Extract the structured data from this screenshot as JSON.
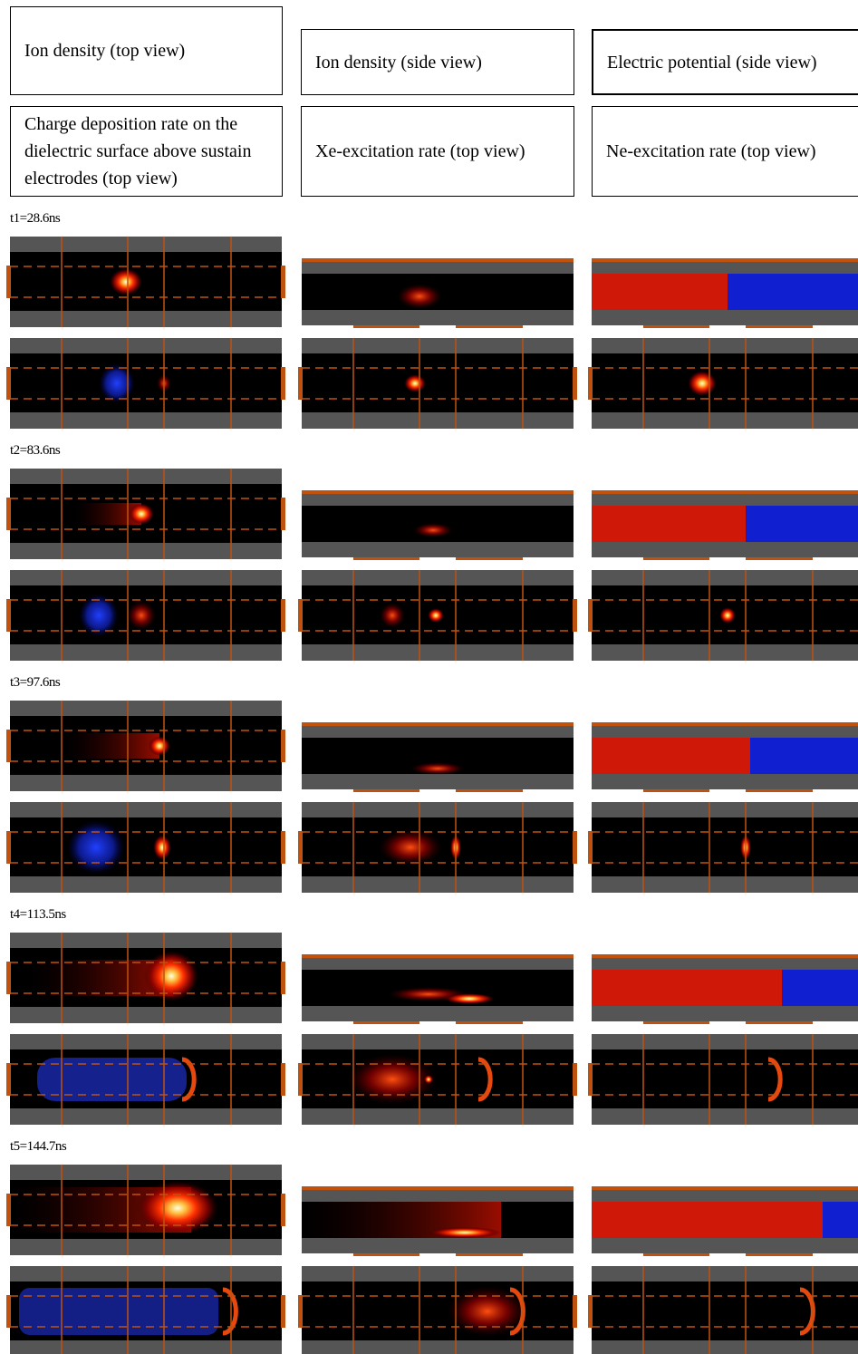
{
  "legend": {
    "row1": [
      "Ion density (top view)",
      "Ion density (side view)",
      "Electric potential (side view)"
    ],
    "row2": [
      "Charge deposition rate on the dielectric surface above sustain electrodes (top view)",
      "Xe-excitation rate (top view)",
      "Ne-excitation rate (top view)"
    ]
  },
  "frames": [
    {
      "label": "t1=28.6ns"
    },
    {
      "label": "t2=83.6ns"
    },
    {
      "label": "t3=97.6ns"
    },
    {
      "label": "t4=113.5ns"
    },
    {
      "label": "t5=144.7ns"
    }
  ]
}
